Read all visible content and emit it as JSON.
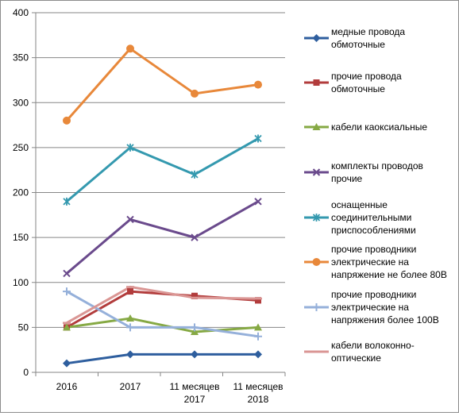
{
  "chart_data": {
    "type": "line",
    "categories": [
      [
        "2016"
      ],
      [
        "2017"
      ],
      [
        "11 месяцев",
        "2017"
      ],
      [
        "11 месяцев",
        "2018"
      ]
    ],
    "ylim": [
      0,
      400
    ],
    "yticks": [
      0,
      50,
      100,
      150,
      200,
      250,
      300,
      350,
      400
    ],
    "grid": true,
    "legend_position": "right",
    "series": [
      {
        "name": "медные провода обмоточные",
        "name_lines": [
          "медные провода",
          "обмоточные"
        ],
        "color": "#2E5E9E",
        "marker": "diamond",
        "values": [
          10,
          20,
          20,
          20
        ]
      },
      {
        "name": "прочие провода обмоточные",
        "name_lines": [
          "прочие провода",
          "обмоточные"
        ],
        "color": "#B23C3C",
        "marker": "square",
        "values": [
          50,
          90,
          85,
          80
        ]
      },
      {
        "name": "кабели каоксиальные",
        "name_lines": [
          "кабели каоксиальные"
        ],
        "color": "#86A944",
        "marker": "triangle",
        "values": [
          50,
          60,
          45,
          50
        ]
      },
      {
        "name": "комплекты проводов прочие",
        "name_lines": [
          "комплекты проводов",
          "прочие"
        ],
        "color": "#6A4A8C",
        "marker": "x",
        "values": [
          110,
          170,
          150,
          190
        ]
      },
      {
        "name": "оснащенные соединительными приспособлениями",
        "name_lines": [
          "оснащенные",
          "соединительными",
          "приспособлениями"
        ],
        "color": "#3499AF",
        "marker": "star",
        "values": [
          190,
          250,
          220,
          260
        ]
      },
      {
        "name": "прочие проводники электрические на напряжение не более 80В",
        "name_lines": [
          "прочие проводники",
          "электрические на",
          "напряжение не более 80В"
        ],
        "color": "#E8883A",
        "marker": "circle",
        "values": [
          280,
          360,
          310,
          320
        ]
      },
      {
        "name": "прочие проводники электрические на напряжения более 100В",
        "name_lines": [
          "прочие проводники",
          "электрические на",
          "напряжения более 100В"
        ],
        "color": "#95B0DA",
        "marker": "plus",
        "values": [
          90,
          50,
          50,
          40
        ]
      },
      {
        "name": "кабели волоконно-оптические",
        "name_lines": [
          "кабели волоконно-",
          "оптические"
        ],
        "color": "#DA9694",
        "marker": "dash",
        "values": [
          55,
          95,
          83,
          82
        ]
      }
    ]
  }
}
